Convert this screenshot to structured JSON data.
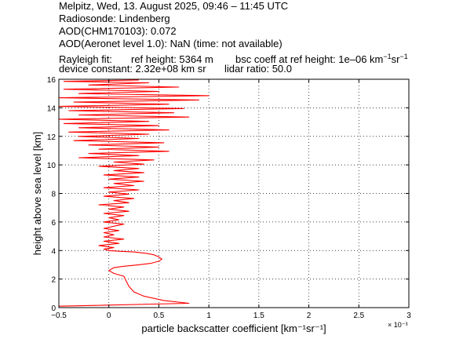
{
  "header": {
    "line1": "Melpitz, Wed, 13. August 2025, 09:46 – 11:45 UTC",
    "line2": "Radiosonde: Lindenberg",
    "line3": "AOD(CHM170103): 0.072",
    "line4": "AOD(Aeronet level 1.0): NaN   (time: not available)",
    "rayleigh_label": "Rayleigh fit:",
    "ref_height": "ref height: 5364 m",
    "bsc_coeff": "bsc coeff at ref height: 1e–06 km",
    "bsc_coeff_sup1": "−1",
    "bsc_coeff_mid": "sr",
    "bsc_coeff_sup2": "−1",
    "device_constant": "device constant: 2.32e+08 km sr",
    "lidar_ratio": "lidar ratio: 50.0"
  },
  "chart_data": {
    "type": "line",
    "xlabel": "particle backscatter coefficient [km⁻¹sr⁻¹]",
    "ylabel": "height above sea level [km]",
    "x_multiplier": "× 10⁻³",
    "xlim": [
      -0.5,
      3
    ],
    "ylim": [
      0,
      16
    ],
    "xticks": [
      -0.5,
      0,
      0.5,
      1,
      1.5,
      2,
      2.5,
      3
    ],
    "xtick_labels": [
      "−0.5",
      "0",
      "0.5",
      "1",
      "1.5",
      "2",
      "2.5",
      "3"
    ],
    "yticks": [
      0,
      2,
      4,
      6,
      8,
      10,
      12,
      14,
      16
    ],
    "ytick_labels": [
      "0",
      "2",
      "4",
      "6",
      "8",
      "10",
      "12",
      "14",
      "16"
    ],
    "grid": true,
    "series": [
      {
        "color": "#ff0000",
        "x_units": "1e-3 km^-1 sr^-1",
        "points": [
          [
            -0.5,
            0.1
          ],
          [
            0.8,
            0.3
          ],
          [
            0.55,
            0.5
          ],
          [
            0.35,
            0.8
          ],
          [
            0.25,
            1.1
          ],
          [
            0.2,
            1.5
          ],
          [
            0.17,
            1.9
          ],
          [
            0.15,
            2.2
          ],
          [
            0.05,
            2.4
          ],
          [
            0.0,
            2.6
          ],
          [
            0.05,
            2.8
          ],
          [
            0.15,
            2.9
          ],
          [
            0.3,
            3.0
          ],
          [
            0.42,
            3.1
          ],
          [
            0.5,
            3.25
          ],
          [
            0.53,
            3.4
          ],
          [
            0.5,
            3.55
          ],
          [
            0.45,
            3.7
          ],
          [
            0.38,
            3.8
          ],
          [
            0.25,
            3.9
          ],
          [
            0.1,
            3.95
          ],
          [
            0.0,
            4.0
          ],
          [
            -0.05,
            4.1
          ],
          [
            0.05,
            4.2
          ],
          [
            -0.1,
            4.35
          ],
          [
            0.1,
            4.5
          ],
          [
            -0.05,
            4.65
          ],
          [
            0.15,
            4.8
          ],
          [
            -0.05,
            4.95
          ],
          [
            0.05,
            5.1
          ],
          [
            -0.05,
            5.25
          ],
          [
            0.1,
            5.4
          ],
          [
            -0.05,
            5.55
          ],
          [
            0.05,
            5.7
          ],
          [
            0.15,
            5.85
          ],
          [
            -0.05,
            6.0
          ],
          [
            0.1,
            6.15
          ],
          [
            0.0,
            6.3
          ],
          [
            0.15,
            6.45
          ],
          [
            -0.05,
            6.6
          ],
          [
            0.2,
            6.75
          ],
          [
            0.0,
            6.9
          ],
          [
            0.15,
            7.05
          ],
          [
            -0.1,
            7.2
          ],
          [
            0.2,
            7.35
          ],
          [
            0.05,
            7.5
          ],
          [
            0.25,
            7.65
          ],
          [
            -0.05,
            7.8
          ],
          [
            0.2,
            7.95
          ],
          [
            0.0,
            8.1
          ],
          [
            0.3,
            8.25
          ],
          [
            -0.05,
            8.4
          ],
          [
            0.25,
            8.55
          ],
          [
            0.05,
            8.7
          ],
          [
            0.35,
            8.85
          ],
          [
            0.0,
            9.0
          ],
          [
            0.3,
            9.15
          ],
          [
            -0.05,
            9.3
          ],
          [
            0.35,
            9.45
          ],
          [
            0.05,
            9.6
          ],
          [
            0.3,
            9.75
          ],
          [
            -0.1,
            9.9
          ],
          [
            0.35,
            10.05
          ],
          [
            0.05,
            10.2
          ],
          [
            0.45,
            10.35
          ],
          [
            -0.3,
            10.5
          ],
          [
            0.3,
            10.65
          ],
          [
            -0.2,
            10.8
          ],
          [
            0.6,
            10.95
          ],
          [
            -0.1,
            11.1
          ],
          [
            0.5,
            11.25
          ],
          [
            -0.2,
            11.4
          ],
          [
            0.55,
            11.55
          ],
          [
            -0.35,
            11.7
          ],
          [
            0.3,
            11.85
          ],
          [
            -0.3,
            12.0
          ],
          [
            0.4,
            12.15
          ],
          [
            -0.4,
            12.3
          ],
          [
            0.6,
            12.45
          ],
          [
            -0.3,
            12.6
          ],
          [
            0.5,
            12.75
          ],
          [
            -0.45,
            12.9
          ],
          [
            0.4,
            13.05
          ],
          [
            -0.5,
            13.2
          ],
          [
            0.8,
            13.35
          ],
          [
            -0.3,
            13.5
          ],
          [
            0.65,
            13.65
          ],
          [
            -0.4,
            13.8
          ],
          [
            0.75,
            13.95
          ],
          [
            -0.5,
            14.1
          ],
          [
            0.6,
            14.25
          ],
          [
            -0.35,
            14.4
          ],
          [
            0.9,
            14.55
          ],
          [
            -0.5,
            14.7
          ],
          [
            1.0,
            14.85
          ],
          [
            -0.3,
            15.0
          ],
          [
            0.5,
            15.15
          ],
          [
            -0.45,
            15.3
          ],
          [
            0.7,
            15.45
          ],
          [
            -0.2,
            15.6
          ],
          [
            0.4,
            15.75
          ],
          [
            -0.45,
            15.85
          ],
          [
            0.3,
            15.95
          ]
        ]
      }
    ]
  }
}
